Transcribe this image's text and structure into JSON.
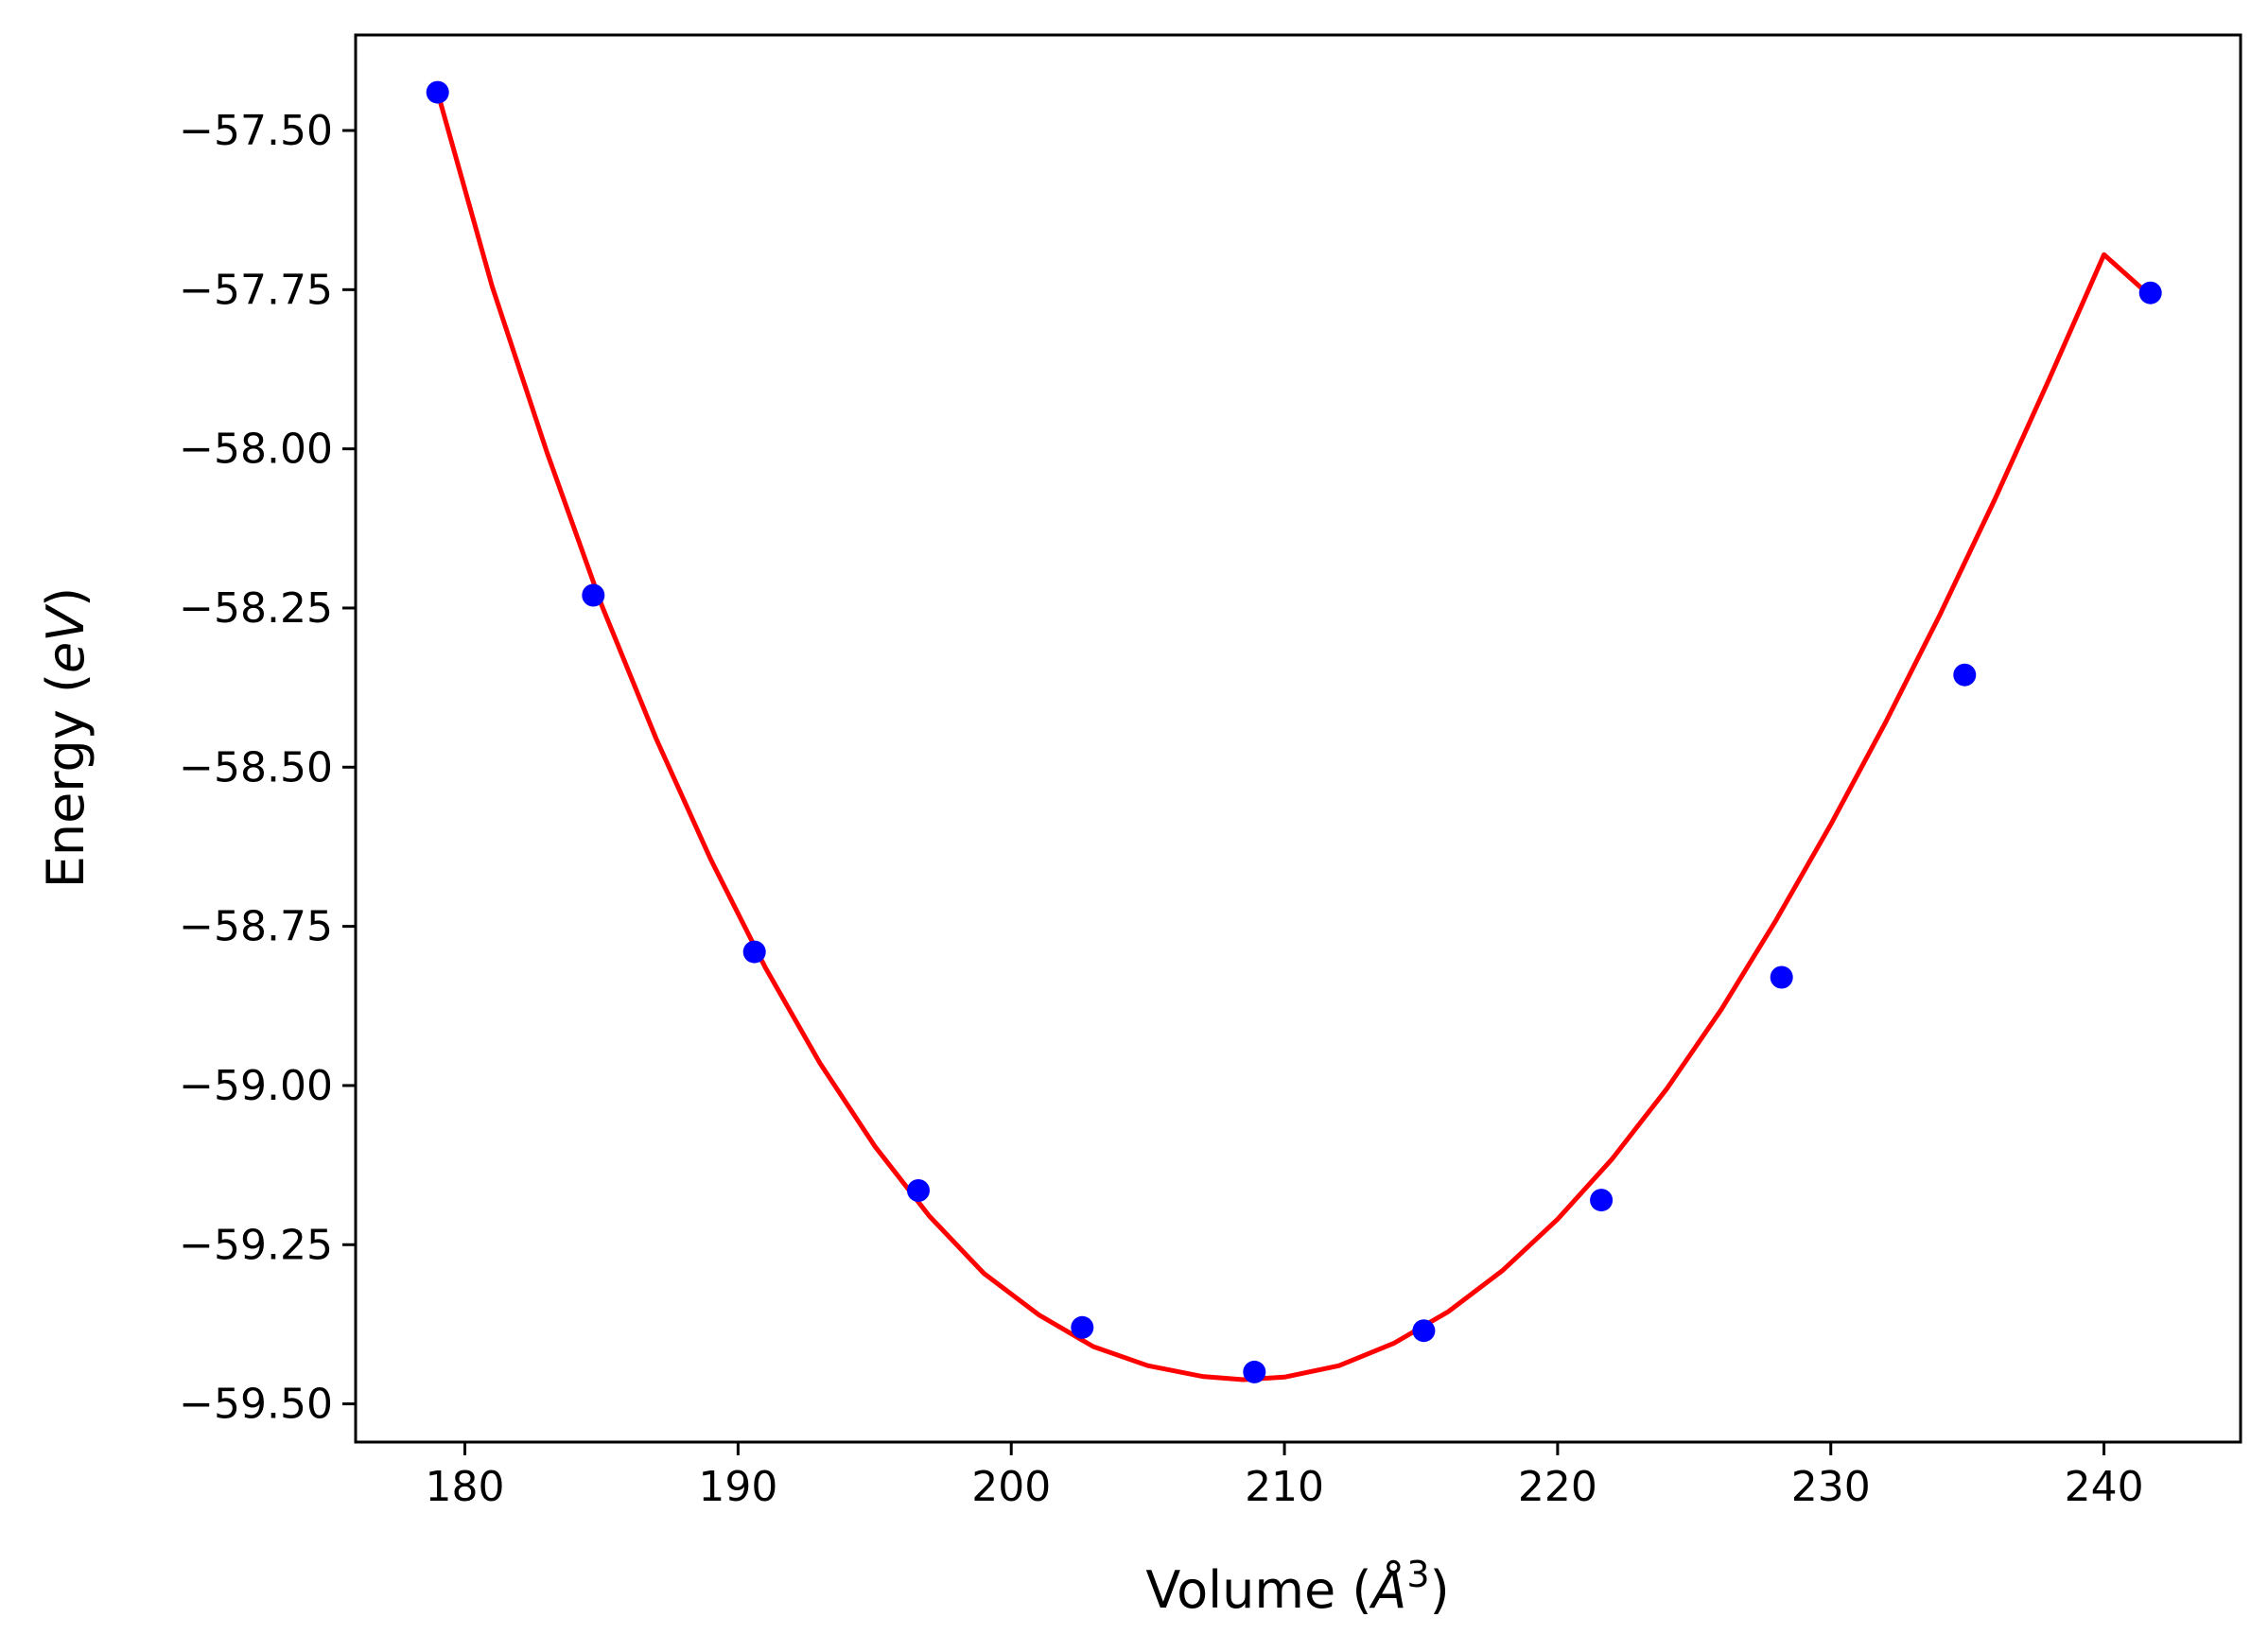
{
  "chart_data": {
    "type": "scatter",
    "xlabel": "Volume (",
    "xlabel_symbol": "Å",
    "xlabel_exponent": "3",
    "xlabel_close": ")",
    "ylabel": "Energy (",
    "ylabel_unit": "eV",
    "ylabel_close": ")",
    "xlim": [
      176,
      245
    ],
    "ylim": [
      -59.56,
      -57.35
    ],
    "xticks": [
      180,
      190,
      200,
      210,
      220,
      230,
      240
    ],
    "xtick_labels": [
      "180",
      "190",
      "200",
      "210",
      "220",
      "230",
      "240"
    ],
    "yticks": [
      -57.5,
      -57.75,
      -58.0,
      -58.25,
      -58.5,
      -58.75,
      -59.0,
      -59.25,
      -59.5
    ],
    "ytick_labels": [
      "−57.50",
      "−57.75",
      "−58.00",
      "−58.25",
      "−58.50",
      "−58.75",
      "−59.00",
      "−59.25",
      "−59.50"
    ],
    "grid": false,
    "series": [
      {
        "kind": "points",
        "color": "#0000ff",
        "x": [
          179.0,
          184.7,
          190.6,
          196.6,
          202.6,
          208.9,
          215.1,
          221.6,
          228.2,
          234.9,
          241.7
        ],
        "y": [
          -57.44,
          -58.23,
          -58.79,
          -59.165,
          -59.38,
          -59.45,
          -59.385,
          -59.18,
          -58.83,
          -58.355,
          -57.755
        ]
      },
      {
        "kind": "line",
        "color": "#ff0000",
        "x": [
          179.0,
          181.0,
          183.0,
          185.0,
          187.0,
          189.0,
          191.0,
          193.0,
          195.0,
          197.0,
          199.0,
          201.0,
          203.0,
          205.0,
          207.0,
          208.5,
          210.0,
          212.0,
          214.0,
          216.0,
          218.0,
          220.0,
          222.0,
          224.0,
          226.0,
          228.0,
          230.0,
          232.0,
          234.0,
          236.0,
          238.0,
          240.0,
          241.7
        ],
        "y": [
          -57.44,
          -57.745,
          -58.005,
          -58.245,
          -58.455,
          -58.645,
          -58.815,
          -58.965,
          -59.095,
          -59.205,
          -59.295,
          -59.36,
          -59.41,
          -59.44,
          -59.457,
          -59.462,
          -59.458,
          -59.44,
          -59.405,
          -59.355,
          -59.29,
          -59.21,
          -59.115,
          -59.005,
          -58.88,
          -58.74,
          -58.59,
          -58.43,
          -58.26,
          -58.08,
          -57.89,
          -57.695,
          -57.76
        ]
      }
    ]
  }
}
